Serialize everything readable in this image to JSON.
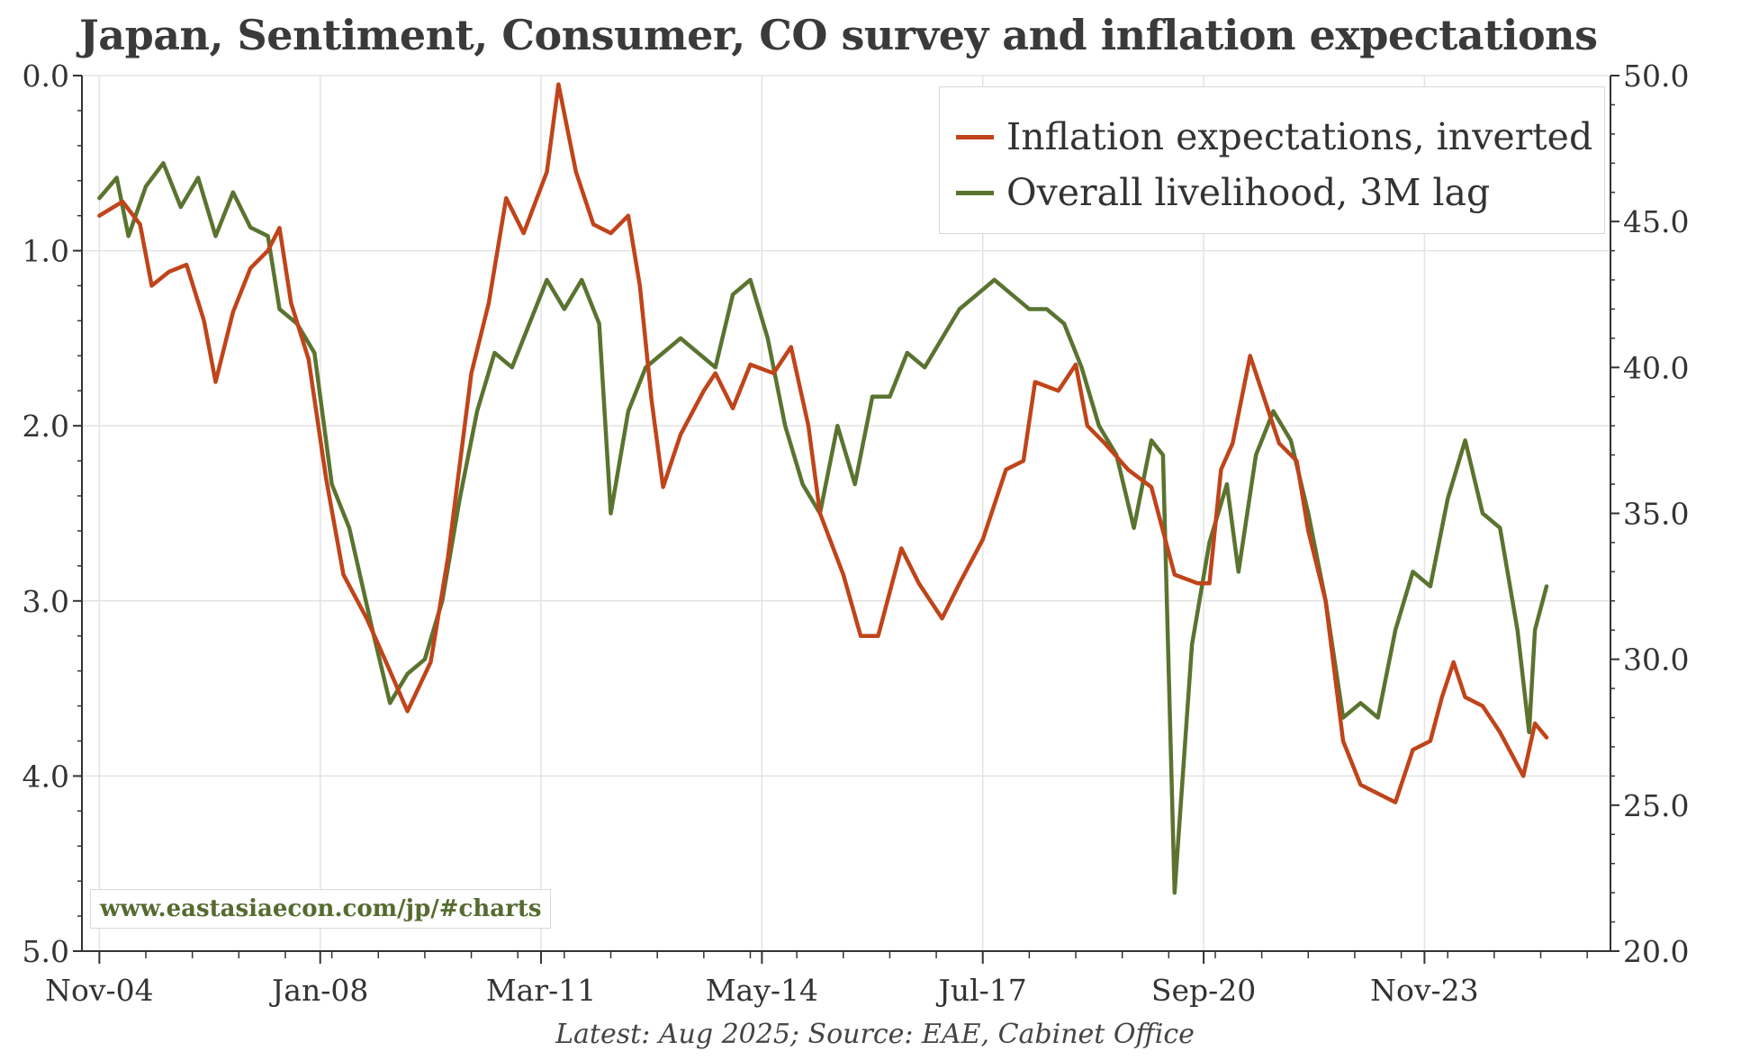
{
  "title": "Japan, Sentiment, Consumer, CO survey and inflation expectations",
  "source": "Latest: Aug 2025; Source: EAE, Cabinet Office",
  "watermark": "www.eastasiaecon.com/jp/#charts",
  "colors": {
    "inflation": "#c0441a",
    "livelihood": "#5a7430",
    "grid": "#e3e3e3",
    "axis": "#333333"
  },
  "chart_data": {
    "type": "line",
    "title": "Japan, Sentiment, Consumer, CO survey and inflation expectations",
    "x_tick_labels": [
      "Nov-04",
      "Jan-08",
      "Mar-11",
      "May-14",
      "Jul-17",
      "Sep-20",
      "Nov-23"
    ],
    "x_range": [
      "2004-08",
      "2026-07"
    ],
    "left_axis": {
      "ticks": [
        "0.0",
        "1.0",
        "2.0",
        "3.0",
        "4.0",
        "5.0"
      ],
      "range": [
        0,
        5
      ],
      "inverted": true
    },
    "right_axis": {
      "ticks": [
        "20.0",
        "25.0",
        "30.0",
        "35.0",
        "40.0",
        "45.0",
        "50.0"
      ],
      "range": [
        20,
        50
      ]
    },
    "grid": true,
    "legend_position": "top-right",
    "series": [
      {
        "name": "Inflation expectations, inverted",
        "axis": "left",
        "points": [
          [
            "2004-11",
            0.8
          ],
          [
            "2005-03",
            0.72
          ],
          [
            "2005-06",
            0.85
          ],
          [
            "2005-08",
            1.2
          ],
          [
            "2005-11",
            1.12
          ],
          [
            "2006-02",
            1.08
          ],
          [
            "2006-05",
            1.4
          ],
          [
            "2006-07",
            1.75
          ],
          [
            "2006-10",
            1.35
          ],
          [
            "2007-01",
            1.1
          ],
          [
            "2007-04",
            1.0
          ],
          [
            "2007-06",
            0.87
          ],
          [
            "2007-08",
            1.3
          ],
          [
            "2007-11",
            1.62
          ],
          [
            "2008-02",
            2.3
          ],
          [
            "2008-05",
            2.85
          ],
          [
            "2008-09",
            3.1
          ],
          [
            "2009-01",
            3.4
          ],
          [
            "2009-04",
            3.63
          ],
          [
            "2009-08",
            3.35
          ],
          [
            "2009-11",
            2.75
          ],
          [
            "2010-03",
            1.7
          ],
          [
            "2010-06",
            1.3
          ],
          [
            "2010-09",
            0.7
          ],
          [
            "2010-12",
            0.9
          ],
          [
            "2011-04",
            0.55
          ],
          [
            "2011-06",
            0.05
          ],
          [
            "2011-09",
            0.55
          ],
          [
            "2011-12",
            0.85
          ],
          [
            "2012-03",
            0.9
          ],
          [
            "2012-06",
            0.8
          ],
          [
            "2012-08",
            1.2
          ],
          [
            "2012-10",
            1.85
          ],
          [
            "2012-12",
            2.35
          ],
          [
            "2013-03",
            2.05
          ],
          [
            "2013-07",
            1.8
          ],
          [
            "2013-09",
            1.7
          ],
          [
            "2013-12",
            1.9
          ],
          [
            "2014-03",
            1.65
          ],
          [
            "2014-07",
            1.7
          ],
          [
            "2014-10",
            1.55
          ],
          [
            "2015-01",
            2.0
          ],
          [
            "2015-03",
            2.5
          ],
          [
            "2015-07",
            2.85
          ],
          [
            "2015-10",
            3.2
          ],
          [
            "2016-01",
            3.2
          ],
          [
            "2016-05",
            2.7
          ],
          [
            "2016-08",
            2.9
          ],
          [
            "2016-12",
            3.1
          ],
          [
            "2017-03",
            2.9
          ],
          [
            "2017-07",
            2.65
          ],
          [
            "2017-11",
            2.25
          ],
          [
            "2018-02",
            2.2
          ],
          [
            "2018-04",
            1.75
          ],
          [
            "2018-08",
            1.8
          ],
          [
            "2018-11",
            1.65
          ],
          [
            "2019-01",
            2.0
          ],
          [
            "2019-04",
            2.1
          ],
          [
            "2019-08",
            2.25
          ],
          [
            "2019-12",
            2.35
          ],
          [
            "2020-04",
            2.85
          ],
          [
            "2020-08",
            2.9
          ],
          [
            "2020-10",
            2.9
          ],
          [
            "2020-12",
            2.25
          ],
          [
            "2021-02",
            2.1
          ],
          [
            "2021-05",
            1.6
          ],
          [
            "2021-07",
            1.8
          ],
          [
            "2021-10",
            2.1
          ],
          [
            "2022-01",
            2.2
          ],
          [
            "2022-03",
            2.6
          ],
          [
            "2022-06",
            3.0
          ],
          [
            "2022-09",
            3.8
          ],
          [
            "2022-12",
            4.05
          ],
          [
            "2023-03",
            4.1
          ],
          [
            "2023-06",
            4.15
          ],
          [
            "2023-09",
            3.85
          ],
          [
            "2023-12",
            3.8
          ],
          [
            "2024-02",
            3.55
          ],
          [
            "2024-04",
            3.35
          ],
          [
            "2024-06",
            3.55
          ],
          [
            "2024-09",
            3.6
          ],
          [
            "2024-12",
            3.75
          ],
          [
            "2025-04",
            4.0
          ],
          [
            "2025-06",
            3.7
          ],
          [
            "2025-08",
            3.78
          ]
        ]
      },
      {
        "name": "Overall livelihood, 3M lag",
        "axis": "right",
        "points": [
          [
            "2004-11",
            45.8
          ],
          [
            "2005-02",
            46.5
          ],
          [
            "2005-04",
            44.5
          ],
          [
            "2005-07",
            46.2
          ],
          [
            "2005-10",
            47.0
          ],
          [
            "2006-01",
            45.5
          ],
          [
            "2006-04",
            46.5
          ],
          [
            "2006-07",
            44.5
          ],
          [
            "2006-10",
            46.0
          ],
          [
            "2007-01",
            44.8
          ],
          [
            "2007-04",
            44.5
          ],
          [
            "2007-06",
            42.0
          ],
          [
            "2007-09",
            41.5
          ],
          [
            "2007-12",
            40.5
          ],
          [
            "2008-03",
            36.0
          ],
          [
            "2008-06",
            34.5
          ],
          [
            "2008-10",
            31.0
          ],
          [
            "2009-01",
            28.5
          ],
          [
            "2009-04",
            29.5
          ],
          [
            "2009-07",
            30.0
          ],
          [
            "2009-10",
            32.0
          ],
          [
            "2010-01",
            35.5
          ],
          [
            "2010-04",
            38.5
          ],
          [
            "2010-07",
            40.5
          ],
          [
            "2010-10",
            40.0
          ],
          [
            "2011-01",
            41.5
          ],
          [
            "2011-04",
            43.0
          ],
          [
            "2011-07",
            42.0
          ],
          [
            "2011-10",
            43.0
          ],
          [
            "2012-01",
            41.5
          ],
          [
            "2012-03",
            35.0
          ],
          [
            "2012-06",
            38.5
          ],
          [
            "2012-09",
            40.0
          ],
          [
            "2012-12",
            40.5
          ],
          [
            "2013-03",
            41.0
          ],
          [
            "2013-06",
            40.5
          ],
          [
            "2013-09",
            40.0
          ],
          [
            "2013-12",
            42.5
          ],
          [
            "2014-03",
            43.0
          ],
          [
            "2014-06",
            41.0
          ],
          [
            "2014-09",
            38.0
          ],
          [
            "2014-12",
            36.0
          ],
          [
            "2015-03",
            35.0
          ],
          [
            "2015-06",
            38.0
          ],
          [
            "2015-09",
            36.0
          ],
          [
            "2015-12",
            39.0
          ],
          [
            "2016-03",
            39.0
          ],
          [
            "2016-06",
            40.5
          ],
          [
            "2016-09",
            40.0
          ],
          [
            "2016-12",
            41.0
          ],
          [
            "2017-03",
            42.0
          ],
          [
            "2017-06",
            42.5
          ],
          [
            "2017-09",
            43.0
          ],
          [
            "2017-12",
            42.5
          ],
          [
            "2018-03",
            42.0
          ],
          [
            "2018-06",
            42.0
          ],
          [
            "2018-09",
            41.5
          ],
          [
            "2018-12",
            40.0
          ],
          [
            "2019-03",
            38.0
          ],
          [
            "2019-06",
            37.0
          ],
          [
            "2019-09",
            34.5
          ],
          [
            "2019-12",
            37.5
          ],
          [
            "2020-02",
            37.0
          ],
          [
            "2020-04",
            22.0
          ],
          [
            "2020-07",
            30.5
          ],
          [
            "2020-10",
            34.0
          ],
          [
            "2021-01",
            36.0
          ],
          [
            "2021-03",
            33.0
          ],
          [
            "2021-06",
            37.0
          ],
          [
            "2021-09",
            38.5
          ],
          [
            "2021-12",
            37.5
          ],
          [
            "2022-03",
            35.0
          ],
          [
            "2022-06",
            32.0
          ],
          [
            "2022-09",
            28.0
          ],
          [
            "2022-12",
            28.5
          ],
          [
            "2023-03",
            28.0
          ],
          [
            "2023-06",
            31.0
          ],
          [
            "2023-09",
            33.0
          ],
          [
            "2023-12",
            32.5
          ],
          [
            "2024-03",
            35.5
          ],
          [
            "2024-06",
            37.5
          ],
          [
            "2024-09",
            35.0
          ],
          [
            "2024-12",
            34.5
          ],
          [
            "2025-03",
            31.0
          ],
          [
            "2025-05",
            27.5
          ],
          [
            "2025-06",
            31.0
          ],
          [
            "2025-08",
            32.5
          ]
        ]
      }
    ]
  }
}
